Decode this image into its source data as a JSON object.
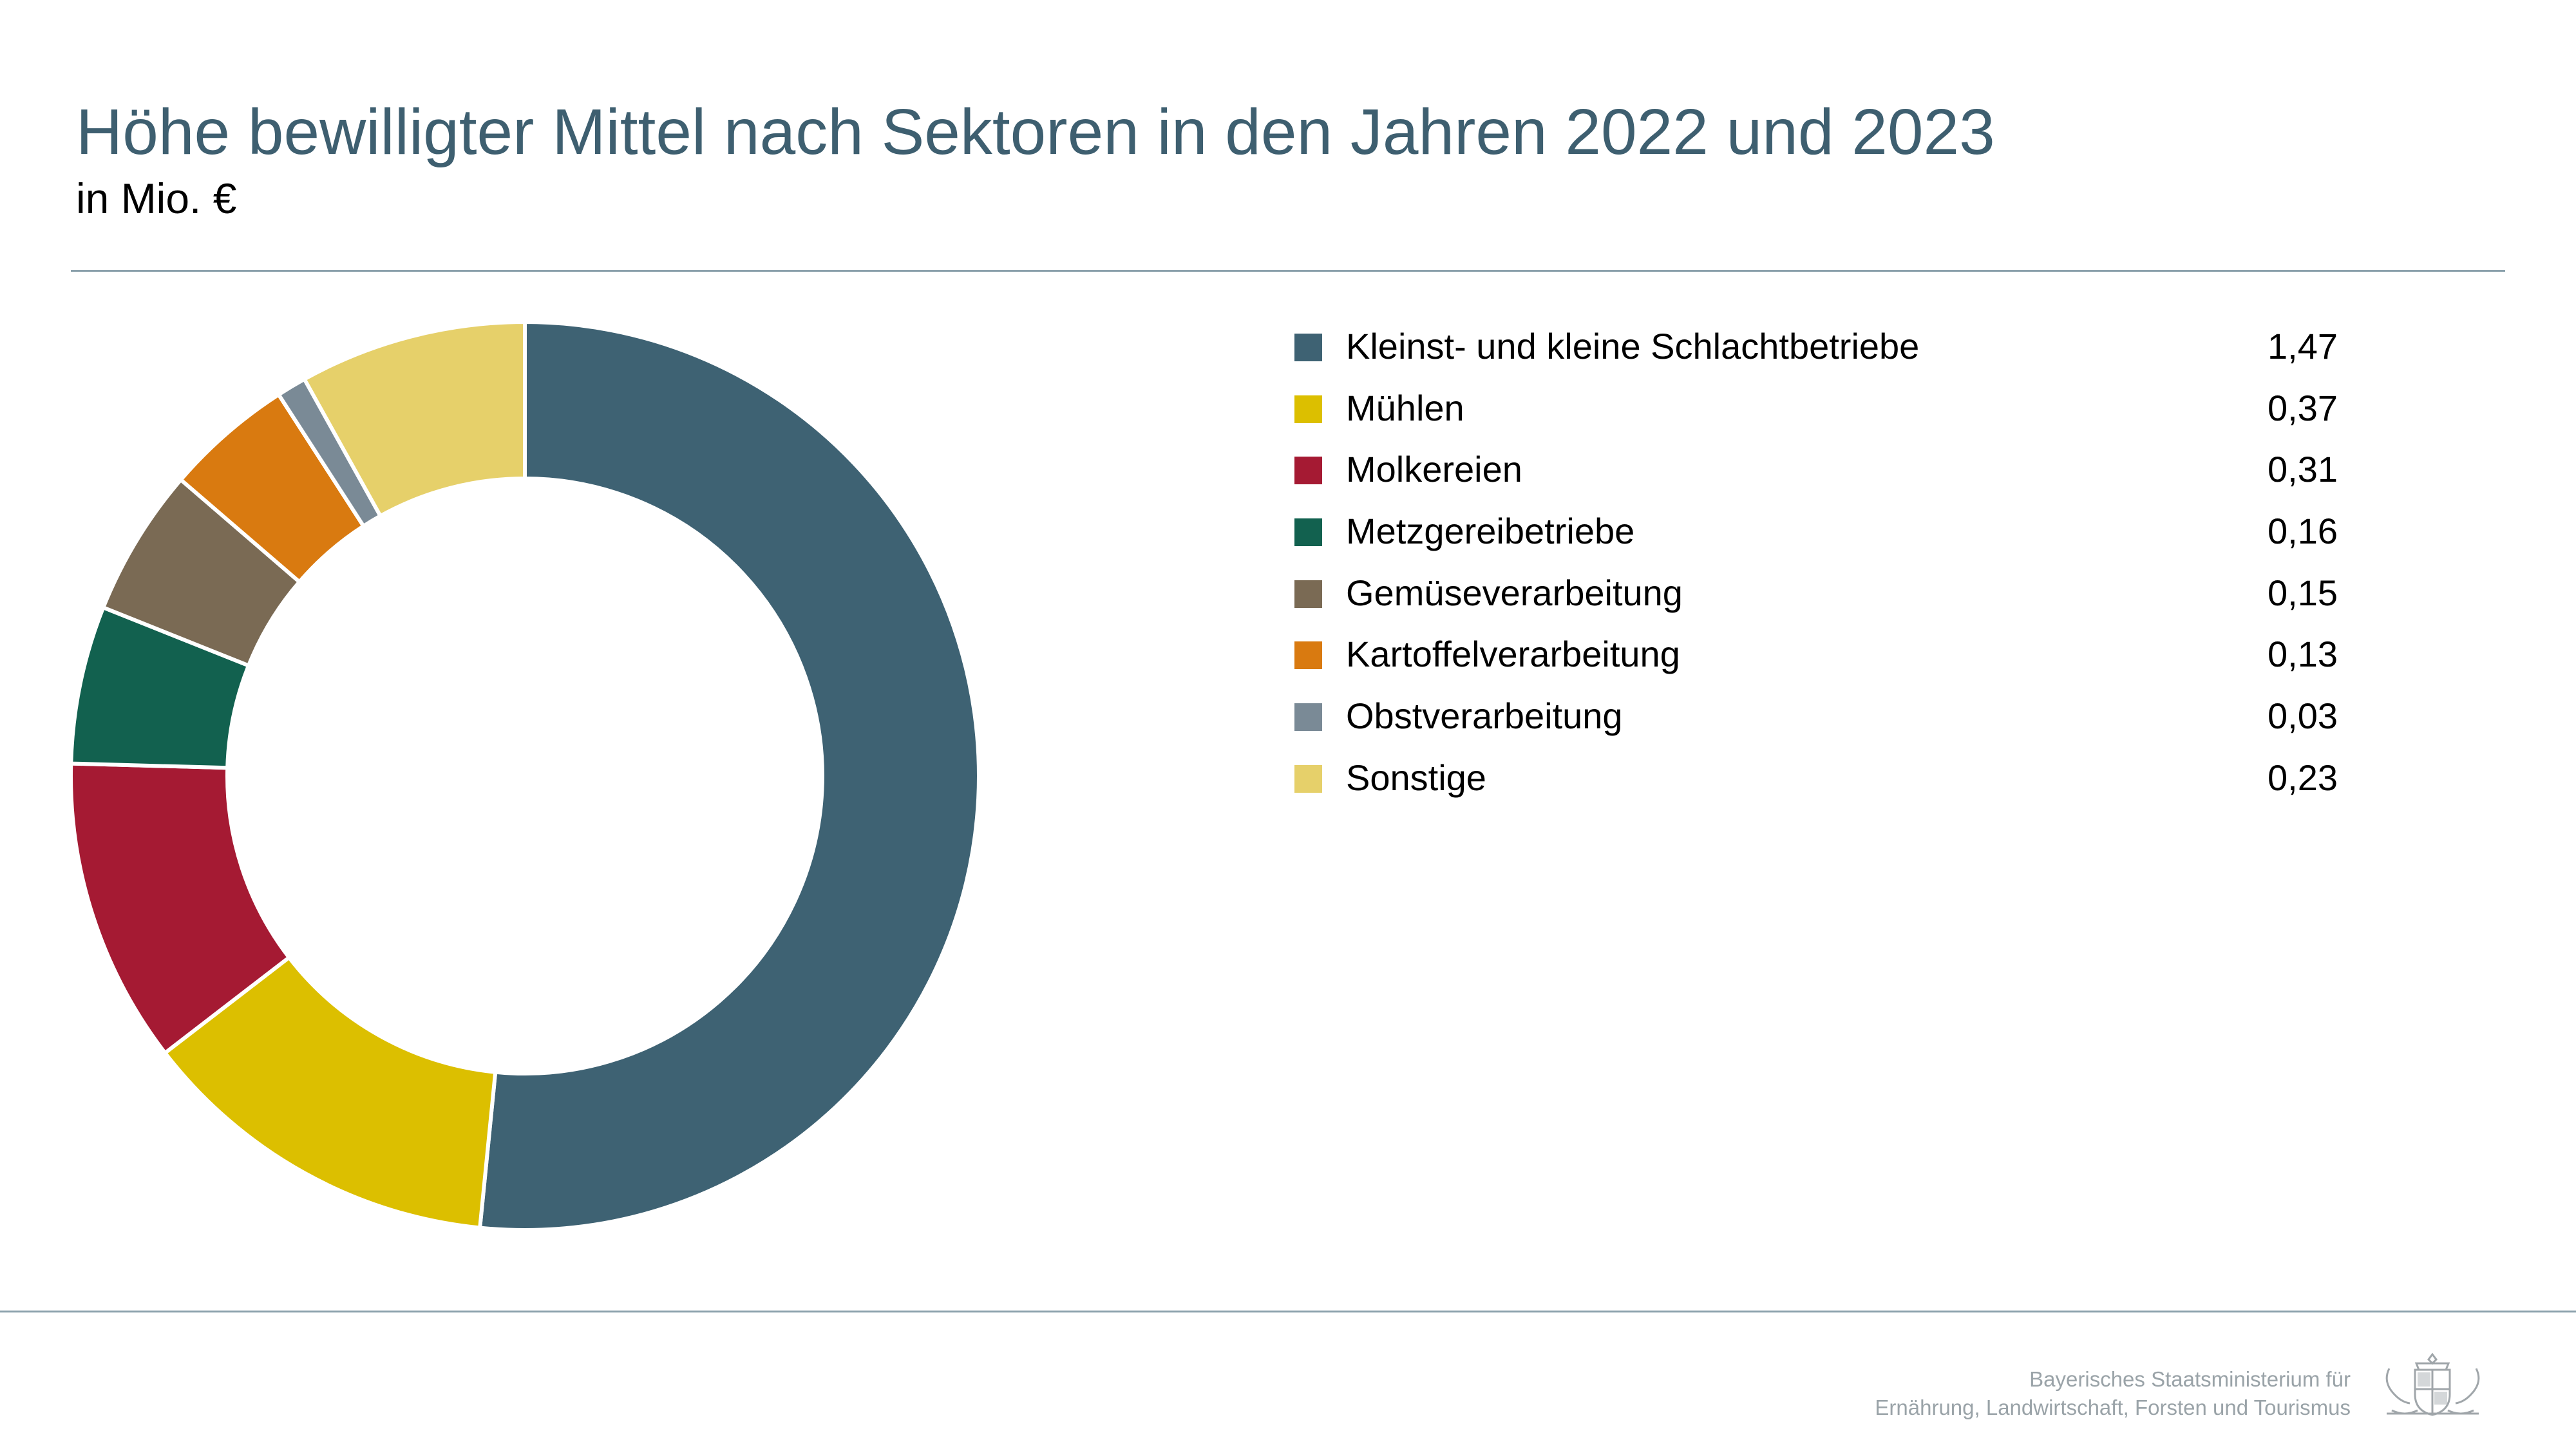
{
  "header": {
    "title": "Höhe bewilligter Mittel nach Sektoren in den Jahren 2022 und 2023",
    "subtitle": "in Mio. €"
  },
  "chart_data": {
    "type": "pie",
    "variant": "donut",
    "title": "Höhe bewilligter Mittel nach Sektoren in den Jahren 2022 und 2023",
    "subtitle": "in Mio. €",
    "legend_position": "right",
    "categories": [
      "Kleinst- und kleine Schlachtbetriebe",
      "Mühlen",
      "Molkereien",
      "Metzgereibetriebe",
      "Gemüseverarbeitung",
      "Kartoffelverarbeitung",
      "Obstverarbeitung",
      "Sonstige"
    ],
    "values": [
      1.47,
      0.37,
      0.31,
      0.16,
      0.15,
      0.13,
      0.03,
      0.23
    ],
    "value_labels": [
      "1,47",
      "0,37",
      "0,31",
      "0,16",
      "0,15",
      "0,13",
      "0,03",
      "0,23"
    ],
    "colors": [
      "#3e6273",
      "#dcbf00",
      "#a51a33",
      "#12614f",
      "#7a6a54",
      "#d97a10",
      "#7a8a96",
      "#e6d06a"
    ]
  },
  "footer": {
    "line1": "Bayerisches Staatsministerium für",
    "line2": "Ernährung, Landwirtschaft, Forsten und Tourismus",
    "logo_icon": "bavarian-crest-icon"
  }
}
